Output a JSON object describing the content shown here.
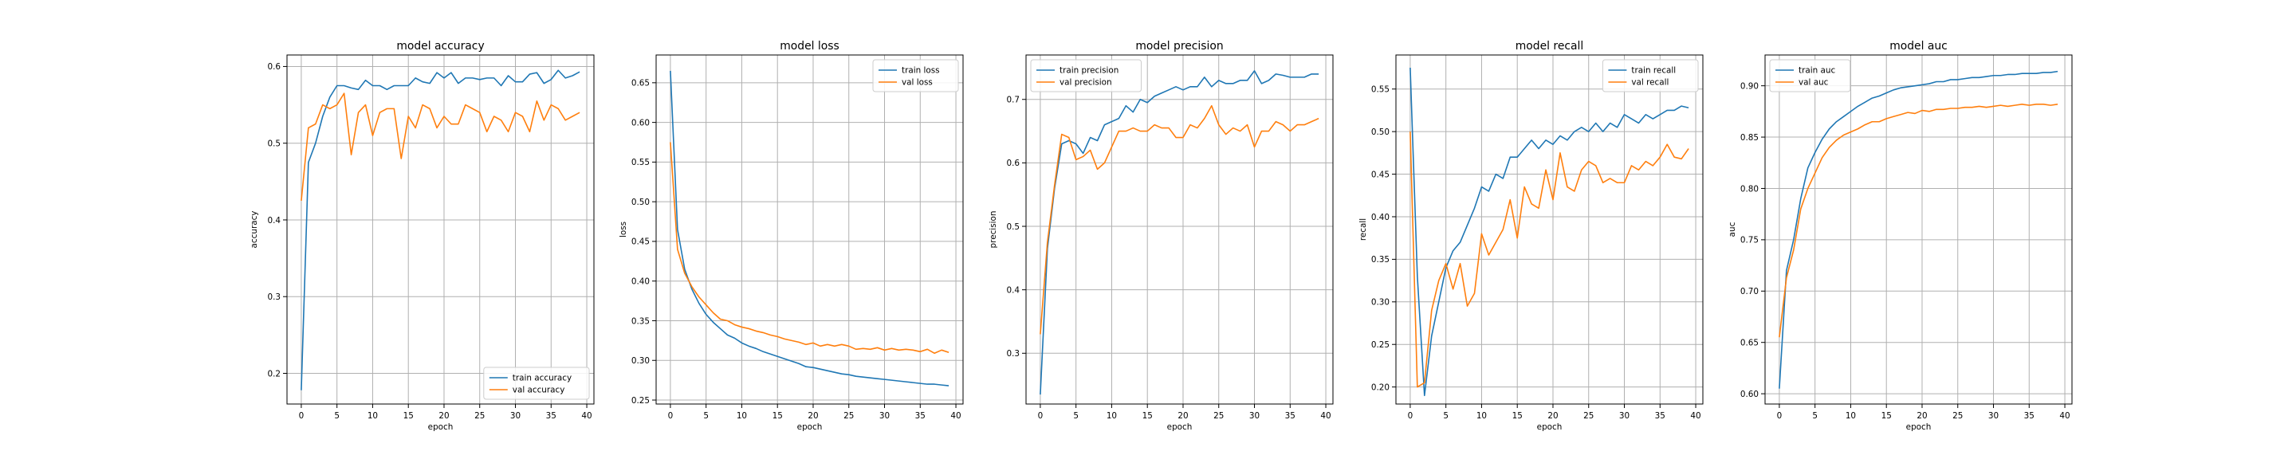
{
  "figure": {
    "colors": {
      "train": "#1f77b4",
      "val": "#ff7f0e",
      "grid": "#b0b0b0"
    }
  },
  "chart_data": [
    {
      "type": "line",
      "title": "model accuracy",
      "xlabel": "epoch",
      "ylabel": "accuracy",
      "xlim": [
        -2,
        41
      ],
      "ylim": [
        0.16,
        0.615
      ],
      "xticks": [
        0,
        5,
        10,
        15,
        20,
        25,
        30,
        35,
        40
      ],
      "yticks": [
        0.2,
        0.3,
        0.4,
        0.5,
        0.6
      ],
      "ytick_labels": [
        "0.2",
        "0.3",
        "0.4",
        "0.5",
        "0.6"
      ],
      "legend": "lower right",
      "series": [
        {
          "name": "train accuracy",
          "color": "#1f77b4",
          "values": [
            0.178,
            0.475,
            0.5,
            0.535,
            0.56,
            0.575,
            0.575,
            0.572,
            0.57,
            0.582,
            0.575,
            0.575,
            0.57,
            0.575,
            0.575,
            0.575,
            0.585,
            0.58,
            0.578,
            0.592,
            0.585,
            0.592,
            0.578,
            0.585,
            0.585,
            0.583,
            0.585,
            0.585,
            0.575,
            0.588,
            0.58,
            0.58,
            0.59,
            0.592,
            0.578,
            0.583,
            0.595,
            0.585,
            0.588,
            0.593
          ]
        },
        {
          "name": "val accuracy",
          "color": "#ff7f0e",
          "values": [
            0.425,
            0.52,
            0.525,
            0.55,
            0.545,
            0.55,
            0.565,
            0.485,
            0.54,
            0.55,
            0.51,
            0.54,
            0.545,
            0.545,
            0.48,
            0.535,
            0.52,
            0.55,
            0.545,
            0.52,
            0.535,
            0.525,
            0.525,
            0.55,
            0.545,
            0.54,
            0.515,
            0.535,
            0.53,
            0.515,
            0.54,
            0.535,
            0.515,
            0.555,
            0.53,
            0.55,
            0.545,
            0.53,
            0.535,
            0.54
          ]
        }
      ]
    },
    {
      "type": "line",
      "title": "model loss",
      "xlabel": "epoch",
      "ylabel": "loss",
      "xlim": [
        -2,
        41
      ],
      "ylim": [
        0.245,
        0.685
      ],
      "xticks": [
        0,
        5,
        10,
        15,
        20,
        25,
        30,
        35,
        40
      ],
      "yticks": [
        0.25,
        0.3,
        0.35,
        0.4,
        0.45,
        0.5,
        0.55,
        0.6,
        0.65
      ],
      "ytick_labels": [
        "0.25",
        "0.30",
        "0.35",
        "0.40",
        "0.45",
        "0.50",
        "0.55",
        "0.60",
        "0.65"
      ],
      "legend": "upper right",
      "series": [
        {
          "name": "train loss",
          "color": "#1f77b4",
          "values": [
            0.665,
            0.465,
            0.415,
            0.39,
            0.372,
            0.358,
            0.348,
            0.34,
            0.332,
            0.328,
            0.322,
            0.318,
            0.315,
            0.311,
            0.308,
            0.305,
            0.302,
            0.299,
            0.296,
            0.292,
            0.291,
            0.289,
            0.287,
            0.285,
            0.283,
            0.282,
            0.28,
            0.279,
            0.278,
            0.277,
            0.276,
            0.275,
            0.274,
            0.273,
            0.272,
            0.271,
            0.27,
            0.27,
            0.269,
            0.268
          ]
        },
        {
          "name": "val loss",
          "color": "#ff7f0e",
          "values": [
            0.575,
            0.44,
            0.41,
            0.393,
            0.38,
            0.37,
            0.36,
            0.352,
            0.35,
            0.345,
            0.342,
            0.34,
            0.337,
            0.335,
            0.332,
            0.33,
            0.327,
            0.325,
            0.323,
            0.32,
            0.322,
            0.318,
            0.32,
            0.318,
            0.32,
            0.318,
            0.314,
            0.315,
            0.314,
            0.316,
            0.313,
            0.315,
            0.313,
            0.314,
            0.313,
            0.311,
            0.314,
            0.309,
            0.313,
            0.31
          ]
        }
      ]
    },
    {
      "type": "line",
      "title": "model precision",
      "xlabel": "epoch",
      "ylabel": "precision",
      "xlim": [
        -2,
        41
      ],
      "ylim": [
        0.22,
        0.77
      ],
      "xticks": [
        0,
        5,
        10,
        15,
        20,
        25,
        30,
        35,
        40
      ],
      "yticks": [
        0.3,
        0.4,
        0.5,
        0.6,
        0.7
      ],
      "ytick_labels": [
        "0.3",
        "0.4",
        "0.5",
        "0.6",
        "0.7"
      ],
      "legend": "upper left",
      "series": [
        {
          "name": "train precision",
          "color": "#1f77b4",
          "values": [
            0.235,
            0.465,
            0.56,
            0.63,
            0.635,
            0.63,
            0.615,
            0.64,
            0.635,
            0.66,
            0.665,
            0.67,
            0.69,
            0.68,
            0.7,
            0.695,
            0.705,
            0.71,
            0.715,
            0.72,
            0.715,
            0.72,
            0.72,
            0.735,
            0.72,
            0.73,
            0.725,
            0.725,
            0.73,
            0.73,
            0.745,
            0.725,
            0.73,
            0.74,
            0.738,
            0.735,
            0.735,
            0.735,
            0.74,
            0.74
          ]
        },
        {
          "name": "val precision",
          "color": "#ff7f0e",
          "values": [
            0.33,
            0.475,
            0.565,
            0.645,
            0.64,
            0.605,
            0.61,
            0.62,
            0.59,
            0.6,
            0.625,
            0.65,
            0.65,
            0.655,
            0.65,
            0.65,
            0.66,
            0.655,
            0.655,
            0.64,
            0.64,
            0.66,
            0.655,
            0.67,
            0.69,
            0.66,
            0.645,
            0.655,
            0.65,
            0.66,
            0.625,
            0.65,
            0.65,
            0.665,
            0.66,
            0.65,
            0.66,
            0.66,
            0.665,
            0.67
          ]
        }
      ]
    },
    {
      "type": "line",
      "title": "model recall",
      "xlabel": "epoch",
      "ylabel": "recall",
      "xlim": [
        -2,
        41
      ],
      "ylim": [
        0.18,
        0.59
      ],
      "xticks": [
        0,
        5,
        10,
        15,
        20,
        25,
        30,
        35,
        40
      ],
      "yticks": [
        0.2,
        0.25,
        0.3,
        0.35,
        0.4,
        0.45,
        0.5,
        0.55
      ],
      "ytick_labels": [
        "0.20",
        "0.25",
        "0.30",
        "0.35",
        "0.40",
        "0.45",
        "0.50",
        "0.55"
      ],
      "legend": "upper right",
      "series": [
        {
          "name": "train recall",
          "color": "#1f77b4",
          "values": [
            0.575,
            0.33,
            0.19,
            0.26,
            0.3,
            0.34,
            0.36,
            0.37,
            0.39,
            0.41,
            0.435,
            0.43,
            0.45,
            0.445,
            0.47,
            0.47,
            0.48,
            0.49,
            0.48,
            0.49,
            0.485,
            0.495,
            0.49,
            0.5,
            0.505,
            0.5,
            0.51,
            0.5,
            0.51,
            0.505,
            0.52,
            0.515,
            0.51,
            0.52,
            0.515,
            0.52,
            0.525,
            0.525,
            0.53,
            0.528
          ]
        },
        {
          "name": "val recall",
          "color": "#ff7f0e",
          "values": [
            0.5,
            0.2,
            0.205,
            0.29,
            0.325,
            0.345,
            0.315,
            0.345,
            0.295,
            0.31,
            0.38,
            0.355,
            0.37,
            0.385,
            0.42,
            0.375,
            0.435,
            0.415,
            0.41,
            0.455,
            0.42,
            0.475,
            0.435,
            0.43,
            0.455,
            0.465,
            0.46,
            0.44,
            0.445,
            0.44,
            0.44,
            0.46,
            0.455,
            0.465,
            0.46,
            0.47,
            0.485,
            0.47,
            0.468,
            0.48
          ]
        }
      ]
    },
    {
      "type": "line",
      "title": "model auc",
      "xlabel": "epoch",
      "ylabel": "auc",
      "xlim": [
        -2,
        41
      ],
      "ylim": [
        0.59,
        0.93
      ],
      "xticks": [
        0,
        5,
        10,
        15,
        20,
        25,
        30,
        35,
        40
      ],
      "yticks": [
        0.6,
        0.65,
        0.7,
        0.75,
        0.8,
        0.85,
        0.9
      ],
      "ytick_labels": [
        "0.60",
        "0.65",
        "0.70",
        "0.75",
        "0.80",
        "0.85",
        "0.90"
      ],
      "legend": "upper left",
      "series": [
        {
          "name": "train auc",
          "color": "#1f77b4",
          "values": [
            0.605,
            0.72,
            0.75,
            0.79,
            0.82,
            0.835,
            0.848,
            0.858,
            0.865,
            0.87,
            0.875,
            0.88,
            0.884,
            0.888,
            0.89,
            0.893,
            0.896,
            0.898,
            0.899,
            0.9,
            0.901,
            0.902,
            0.904,
            0.904,
            0.906,
            0.906,
            0.907,
            0.908,
            0.908,
            0.909,
            0.91,
            0.91,
            0.911,
            0.911,
            0.912,
            0.912,
            0.912,
            0.913,
            0.913,
            0.914
          ]
        },
        {
          "name": "val auc",
          "color": "#ff7f0e",
          "values": [
            0.655,
            0.713,
            0.74,
            0.78,
            0.8,
            0.815,
            0.83,
            0.84,
            0.847,
            0.852,
            0.855,
            0.858,
            0.862,
            0.865,
            0.865,
            0.868,
            0.87,
            0.872,
            0.874,
            0.873,
            0.876,
            0.875,
            0.877,
            0.877,
            0.878,
            0.878,
            0.879,
            0.879,
            0.88,
            0.879,
            0.88,
            0.881,
            0.88,
            0.881,
            0.882,
            0.881,
            0.882,
            0.882,
            0.881,
            0.882
          ]
        }
      ]
    }
  ]
}
